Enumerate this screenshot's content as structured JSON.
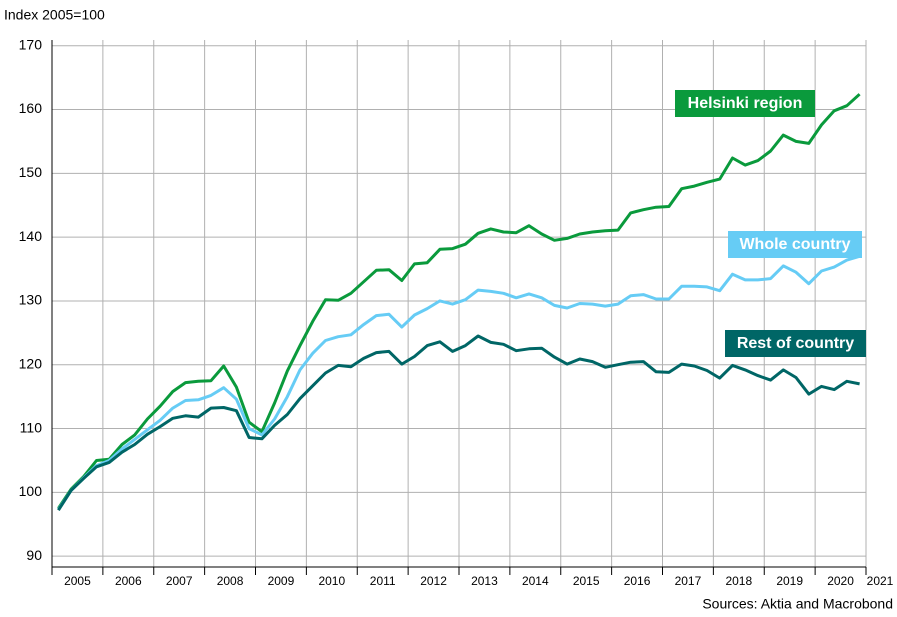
{
  "chart_data": {
    "type": "line",
    "y_label": "Index 2005=100",
    "source": "Sources: Aktia and Macrobond",
    "x": [
      2005.125,
      2005.375,
      2005.625,
      2005.875,
      2006.125,
      2006.375,
      2006.625,
      2006.875,
      2007.125,
      2007.375,
      2007.625,
      2007.875,
      2008.125,
      2008.375,
      2008.625,
      2008.875,
      2009.125,
      2009.375,
      2009.625,
      2009.875,
      2010.125,
      2010.375,
      2010.625,
      2010.875,
      2011.125,
      2011.375,
      2011.625,
      2011.875,
      2012.125,
      2012.375,
      2012.625,
      2012.875,
      2013.125,
      2013.375,
      2013.625,
      2013.875,
      2014.125,
      2014.375,
      2014.625,
      2014.875,
      2015.125,
      2015.375,
      2015.625,
      2015.875,
      2016.125,
      2016.375,
      2016.625,
      2016.875,
      2017.125,
      2017.375,
      2017.625,
      2017.875,
      2018.125,
      2018.375,
      2018.625,
      2018.875,
      2019.125,
      2019.375,
      2019.625,
      2019.875,
      2020.125,
      2020.375,
      2020.625,
      2020.875
    ],
    "series": [
      {
        "name": "Helsinki region",
        "color": "#0a9a3c",
        "values": [
          97.5,
          100.5,
          102.5,
          105,
          105.2,
          107.5,
          109,
          111.5,
          113.5,
          115.8,
          117.2,
          117.4,
          117.5,
          119.8,
          116.5,
          111,
          109.5,
          114,
          119,
          123,
          126.8,
          130.2,
          130.1,
          131.2,
          133,
          134.8,
          134.9,
          133.2,
          135.8,
          136,
          138.1,
          138.2,
          138.9,
          140.6,
          141.3,
          140.8,
          140.7,
          141.8,
          140.5,
          139.5,
          139.8,
          140.5,
          140.8,
          141,
          141.1,
          143.8,
          144.3,
          144.7,
          144.8,
          147.6,
          148,
          148.6,
          149.1,
          152.4,
          151.3,
          152,
          153.5,
          156,
          155,
          154.7,
          157.6,
          159.8,
          160.6,
          162.4
        ]
      },
      {
        "name": "Whole country",
        "color": "#66ccf5",
        "values": [
          97.3,
          100.3,
          102.3,
          104.2,
          105,
          106.8,
          108.3,
          109.8,
          111.3,
          113.2,
          114.4,
          114.5,
          115.2,
          116.4,
          114.6,
          110,
          109,
          111.5,
          115,
          119.2,
          121.8,
          123.8,
          124.4,
          124.7,
          126.3,
          127.7,
          127.9,
          125.9,
          127.8,
          128.8,
          130,
          129.5,
          130.2,
          131.7,
          131.5,
          131.2,
          130.5,
          131.1,
          130.5,
          129.3,
          128.9,
          129.6,
          129.5,
          129.2,
          129.5,
          130.8,
          131,
          130.3,
          130.3,
          132.3,
          132.3,
          132.2,
          131.6,
          134.2,
          133.3,
          133.3,
          133.5,
          135.5,
          134.5,
          132.7,
          134.7,
          135.3,
          136.4,
          137
        ]
      },
      {
        "name": "Rest of country",
        "color": "#006666",
        "values": [
          97.2,
          100.3,
          102.2,
          104,
          104.7,
          106.3,
          107.5,
          109.1,
          110.3,
          111.6,
          112,
          111.8,
          113.2,
          113.3,
          112.8,
          108.6,
          108.4,
          110.5,
          112.2,
          114.7,
          116.7,
          118.7,
          119.9,
          119.7,
          121,
          121.9,
          122.1,
          120.1,
          121.3,
          123,
          123.6,
          122.1,
          123,
          124.5,
          123.5,
          123.2,
          122.2,
          122.5,
          122.6,
          121.2,
          120.1,
          120.9,
          120.5,
          119.6,
          120,
          120.4,
          120.5,
          118.9,
          118.8,
          120.1,
          119.8,
          119.1,
          117.9,
          119.9,
          119.2,
          118.3,
          117.6,
          119.2,
          118,
          115.4,
          116.6,
          116.1,
          117.4,
          117
        ]
      }
    ],
    "xlim": [
      2005,
      2021
    ],
    "xticks": [
      2005,
      2006,
      2007,
      2008,
      2009,
      2010,
      2011,
      2012,
      2013,
      2014,
      2015,
      2016,
      2017,
      2018,
      2019,
      2020,
      2021
    ],
    "ylim": [
      88.3,
      170.9
    ],
    "yticks": [
      90,
      100,
      110,
      120,
      130,
      140,
      150,
      160,
      170
    ],
    "grid": true
  }
}
